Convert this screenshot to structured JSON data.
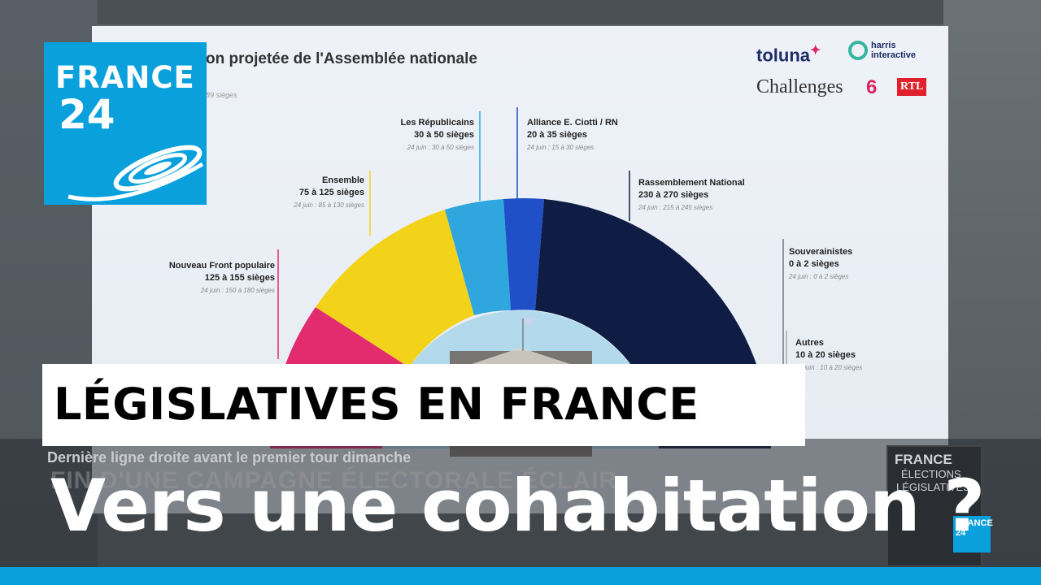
{
  "board": {
    "title": "on projetée de l'Assemblée nationale",
    "subtitle": "89 sièges"
  },
  "brands": {
    "toluna": "toluna",
    "harris": "harris interactive",
    "challenges": "Challenges",
    "six": "6",
    "rtl": "RTL"
  },
  "parties": [
    {
      "name": "Nouveau Front populaire",
      "seats": "125 à 155 sièges",
      "prev": "24 juin : 150 à 180 sièges",
      "color": "#e32c6e"
    },
    {
      "name": "Ensemble",
      "seats": "75 à 125 sièges",
      "prev": "24 juin : 85 à 130 sièges",
      "color": "#f3d21a"
    },
    {
      "name": "Les Républicains",
      "seats": "30 à 50 sièges",
      "prev": "24 juin : 30 à 50 sièges",
      "color": "#2fa6dd"
    },
    {
      "name": "Alliance E. Ciotti / RN",
      "seats": "20 à 35 sièges",
      "prev": "24 juin : 15 à 30 sièges",
      "color": "#1f50c8"
    },
    {
      "name": "Rassemblement National",
      "seats": "230 à 270 sièges",
      "prev": "24 juin : 215 à 245 sièges",
      "color": "#0f1d44"
    },
    {
      "name": "Souverainistes",
      "seats": "0 à 2 sièges",
      "prev": "24 juin : 0 à 2 sièges",
      "color": "#3a3a55"
    },
    {
      "name": "Autres",
      "seats": "10 à 20 sièges",
      "prev": "24 juin : 10 à 20 sièges",
      "color": "#888888"
    }
  ],
  "logo": {
    "word": "FRANCE",
    "number": "24"
  },
  "ticker": {
    "sub": "Dernière ligne droite avant le premier tour dimanche",
    "ghost": "FIN D'UNE CAMPAGNE ÉLECTORALE ÉCLAIR"
  },
  "kicker": "LÉGISLATIVES EN FRANCE",
  "headline": "Vers une cohabitation ?",
  "mini": {
    "line1": "FRANCE",
    "line2": "ÉLECTIONS",
    "line3": "LÉGISLATIVES",
    "badge": "FRANCE 24"
  },
  "colors": {
    "brand": "#0aa0dc",
    "board": "#eef2f8"
  }
}
